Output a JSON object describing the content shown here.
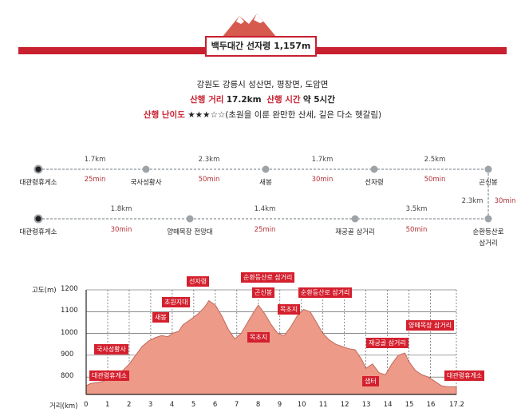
{
  "header": {
    "title": "백두대간 선자령 1,157m",
    "location": "강원도 강릉시 성산면, 평창면, 도암면",
    "distance_label": "산행 거리",
    "distance_value": "17.2km",
    "time_label": "산행 시간",
    "time_value": "약 5시간",
    "difficulty_label": "산행 난이도",
    "difficulty_value": "★★★☆☆(초원을 이룬 완만한 산세, 길은 다소 헷갈림)"
  },
  "route": {
    "row1": {
      "stops": [
        "대관령휴게소",
        "국사성황사",
        "새봉",
        "선자령",
        "곤신봉"
      ],
      "distances": [
        "1.7km",
        "2.3km",
        "1.7km",
        "2.5km"
      ],
      "times": [
        "25min",
        "50min",
        "30min",
        "50min"
      ]
    },
    "connector": {
      "distance": "2.3km",
      "time": "30min"
    },
    "row2": {
      "stops": [
        "대관령휴게소",
        "양떼목장 전망대",
        "재궁골 삼거리",
        "순환등산로 삼거리"
      ],
      "distances": [
        "1.8km",
        "1.4km",
        "3.5km"
      ],
      "times": [
        "30min",
        "25min",
        "50min"
      ]
    }
  },
  "chart_data": {
    "type": "area",
    "ylabel": "고도(m)",
    "xlabel": "거리(km)",
    "y_ticks": [
      "1200",
      "1100",
      "1000",
      "900",
      "800"
    ],
    "x_ticks": [
      "0",
      "1",
      "2",
      "3",
      "4",
      "5",
      "6",
      "7",
      "8",
      "9",
      "10",
      "11",
      "12",
      "13",
      "14",
      "15",
      "16",
      "17.2"
    ],
    "ylim": [
      720,
      1200
    ],
    "xlim": [
      0,
      17.2
    ],
    "x": [
      0,
      0.2,
      0.5,
      0.8,
      1,
      1.3,
      1.6,
      1.8,
      2,
      2.3,
      2.6,
      2.9,
      3.2,
      3.5,
      3.8,
      4,
      4.3,
      4.5,
      4.8,
      5,
      5.2,
      5.5,
      5.7,
      6,
      6.3,
      6.6,
      6.9,
      7.2,
      7.5,
      7.8,
      8,
      8.3,
      8.6,
      8.9,
      9.2,
      9.5,
      9.8,
      10.1,
      10.4,
      10.7,
      11,
      11.3,
      11.6,
      11.9,
      12.2,
      12.5,
      12.8,
      13,
      13.3,
      13.6,
      13.9,
      14.2,
      14.5,
      14.8,
      15,
      15.3,
      15.6,
      15.9,
      16.2,
      16.5,
      16.8,
      17.2
    ],
    "y": [
      760,
      770,
      775,
      780,
      790,
      800,
      820,
      840,
      860,
      900,
      940,
      965,
      980,
      990,
      985,
      1000,
      1010,
      1040,
      1060,
      1075,
      1090,
      1120,
      1150,
      1130,
      1080,
      1020,
      975,
      1000,
      1050,
      1100,
      1130,
      1090,
      1040,
      1000,
      990,
      1030,
      1080,
      1110,
      1100,
      1050,
      1000,
      970,
      950,
      940,
      930,
      925,
      880,
      840,
      860,
      820,
      810,
      860,
      900,
      910,
      870,
      830,
      810,
      800,
      780,
      760,
      755,
      755
    ],
    "annotations": [
      "대관령휴게소",
      "국사성황사",
      "새봉",
      "초원지대",
      "선자령",
      "순환등산로 삼거리",
      "곤신봉",
      "목초지",
      "목초지",
      "순환등산로 삼거리",
      "재궁골 삼거리",
      "샘터",
      "양떼목장 삼거리",
      "대관령휴게소"
    ]
  },
  "colors": {
    "accent": "#c8202f",
    "area": "#ee9a88",
    "line": "#c06a5e",
    "route_line": "#b7bcc0"
  }
}
